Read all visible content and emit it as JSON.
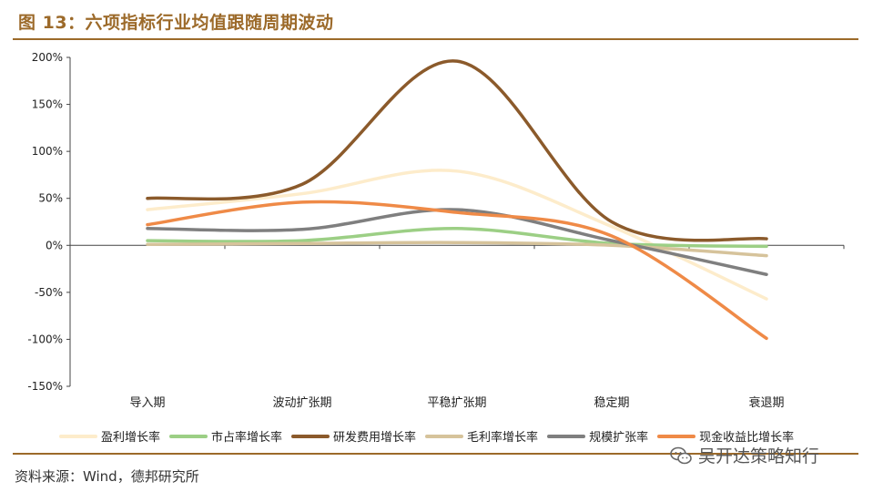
{
  "title": "图 13：六项指标行业均值跟随周期波动",
  "source": "资料来源：Wind，德邦研究所",
  "watermark": "吴开达策略知行",
  "chart_data": {
    "type": "line",
    "title": "",
    "xlabel": "",
    "ylabel": "",
    "categories": [
      "导入期",
      "波动扩张期",
      "平稳扩张期",
      "稳定期",
      "衰退期"
    ],
    "y_ticks": [
      "200%",
      "150%",
      "100%",
      "50%",
      "0%",
      "-50%",
      "-100%",
      "-150%"
    ],
    "ylim": [
      -150,
      200
    ],
    "y_unit": "%",
    "grid": false,
    "legend_position": "bottom",
    "series": [
      {
        "name": "盈利增长率",
        "color": "#fdeccb",
        "values": [
          38,
          55,
          79,
          20,
          -57
        ]
      },
      {
        "name": "市占率增长率",
        "color": "#9ccf85",
        "values": [
          5,
          5,
          18,
          2,
          -1
        ]
      },
      {
        "name": "研发费用增长率",
        "color": "#8b5a2b",
        "values": [
          50,
          65,
          196,
          25,
          7
        ]
      },
      {
        "name": "毛利率增长率",
        "color": "#d6c39b",
        "values": [
          1,
          2,
          3,
          0,
          -11
        ]
      },
      {
        "name": "规模扩张率",
        "color": "#7f7f7f",
        "values": [
          18,
          17,
          38,
          5,
          -31
        ]
      },
      {
        "name": "现金收益比增长率",
        "color": "#ef8a47",
        "values": [
          22,
          46,
          35,
          10,
          -99
        ]
      }
    ]
  }
}
